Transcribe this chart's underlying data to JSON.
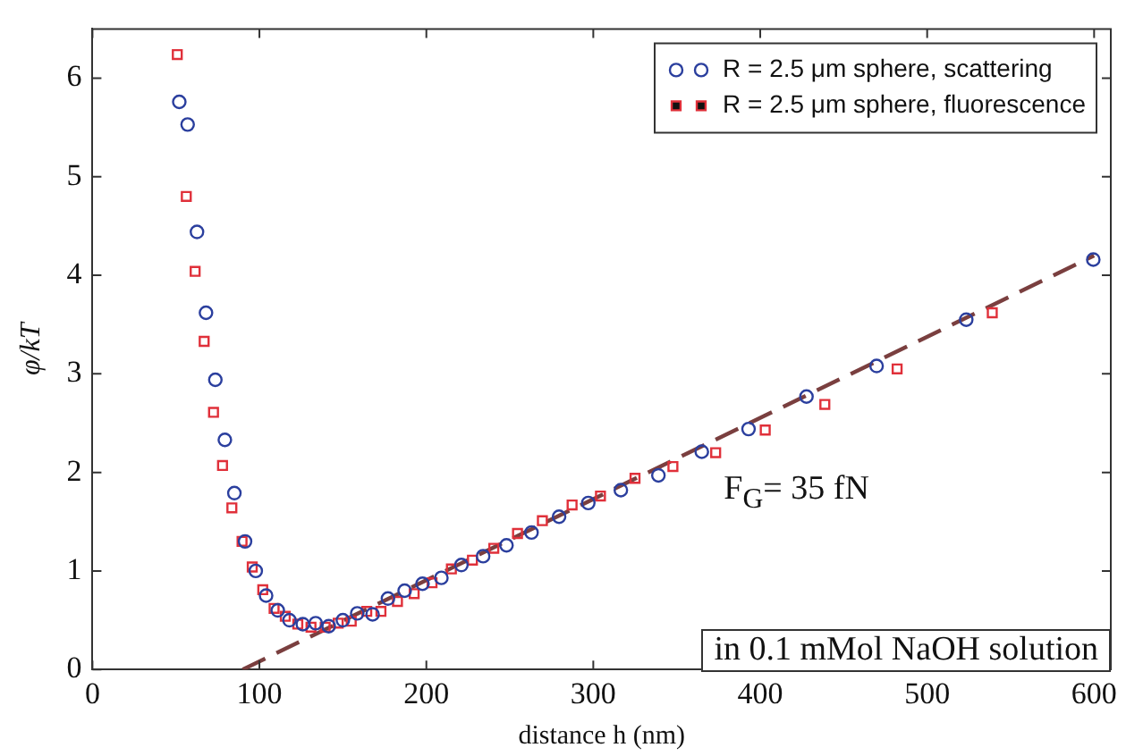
{
  "chart_data": {
    "type": "scatter",
    "xlabel": "distance h (nm)",
    "ylabel": "φ/kT",
    "xlim": [
      0,
      610
    ],
    "xticks": [
      0,
      100,
      200,
      300,
      400,
      500,
      600
    ],
    "ylim": [
      0,
      6.5
    ],
    "yticks": [
      0,
      1,
      2,
      3,
      4,
      5,
      6
    ],
    "grid": false,
    "legend": "top right",
    "annotations": [
      "F$_{G}$= 35 fN",
      "in 0.1 mMol NaOH solution"
    ],
    "series": [
      {
        "name": "R = 2.5 μm sphere, scattering",
        "color": "#2b3f9e",
        "marker": "circle",
        "x": [
          52,
          57,
          62.6,
          68,
          73.6,
          79.3,
          85,
          91.4,
          97.8,
          104,
          111,
          118,
          126,
          133.7,
          141.5,
          150,
          158.6,
          167.8,
          177,
          187,
          197.7,
          209,
          221,
          234,
          248,
          263,
          279.5,
          297,
          316.5,
          339,
          365,
          393,
          427.7,
          469.7,
          523.4,
          599.5
        ],
        "values": [
          5.76,
          5.53,
          4.44,
          3.62,
          2.94,
          2.33,
          1.79,
          1.3,
          1.0,
          0.75,
          0.6,
          0.5,
          0.46,
          0.47,
          0.44,
          0.5,
          0.57,
          0.56,
          0.72,
          0.8,
          0.87,
          0.93,
          1.06,
          1.15,
          1.26,
          1.39,
          1.55,
          1.69,
          1.82,
          1.97,
          2.21,
          2.44,
          2.77,
          3.08,
          3.55,
          4.16
        ]
      },
      {
        "name": "R = 2.5 μm sphere, fluorescence",
        "color": "#e0303a",
        "marker": "square",
        "x": [
          50.8,
          56.2,
          61.5,
          66.9,
          72.5,
          77.9,
          83.5,
          89.6,
          95.7,
          102,
          108.8,
          115.5,
          123,
          130.9,
          139.4,
          147.2,
          155,
          164.3,
          172.8,
          182.7,
          192.7,
          203.4,
          215,
          227.6,
          240.4,
          254.6,
          269.5,
          287.3,
          304.3,
          325,
          347.7,
          373.3,
          403,
          438.7,
          482,
          539
        ],
        "values": [
          6.24,
          4.8,
          4.04,
          3.33,
          2.61,
          2.07,
          1.64,
          1.3,
          1.04,
          0.81,
          0.62,
          0.54,
          0.46,
          0.43,
          0.43,
          0.47,
          0.49,
          0.59,
          0.59,
          0.69,
          0.77,
          0.88,
          1.02,
          1.11,
          1.23,
          1.38,
          1.51,
          1.67,
          1.76,
          1.94,
          2.06,
          2.2,
          2.43,
          2.69,
          3.05,
          3.62
        ]
      },
      {
        "type": "line",
        "color": "#7a3f3f",
        "line_style": "dashed",
        "marker": "none",
        "x": [
          90,
          600
        ],
        "values": [
          0,
          4.2
        ]
      }
    ]
  }
}
